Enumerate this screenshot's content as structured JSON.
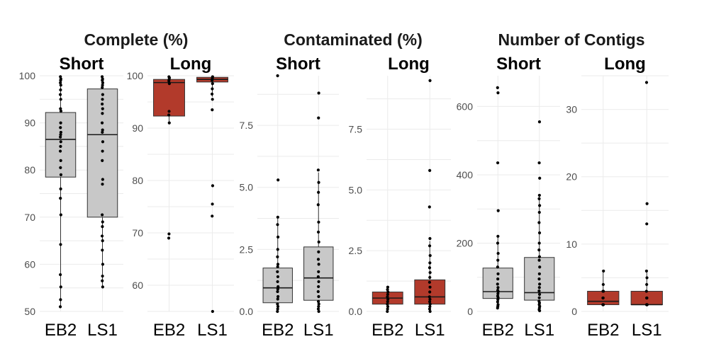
{
  "colors": {
    "short_box": "#c8c8c8",
    "long_box": "#b23a2b",
    "grid": "#ebebeb"
  },
  "chart_data": [
    {
      "type": "boxplot",
      "group_title": "Complete (%)",
      "title": "Short",
      "fill": "short",
      "categories": [
        "EB2",
        "LS1"
      ],
      "ylim": [
        50,
        100
      ],
      "yticks": [
        50,
        60,
        70,
        80,
        90,
        100
      ],
      "boxes": [
        {
          "category": "EB2",
          "q1": 78.5,
          "median": 86.5,
          "q3": 92.2,
          "whisker_low": 51,
          "whisker_high": 99.8,
          "points": [
            51,
            52.5,
            55.2,
            57.8,
            64.2,
            70.5,
            74,
            76,
            79,
            80.5,
            82,
            84,
            85,
            86,
            87,
            87.5,
            88,
            89,
            90,
            92.5,
            93,
            95,
            96,
            97,
            98,
            98.5,
            99,
            99.3,
            99.8
          ]
        },
        {
          "category": "LS1",
          "q1": 70,
          "median": 87.5,
          "q3": 97.2,
          "whisker_low": 55.2,
          "whisker_high": 99.8,
          "points": [
            55.2,
            56.5,
            57.5,
            60,
            63,
            65,
            66,
            68,
            69,
            70.5,
            77,
            78,
            82,
            84,
            86,
            88,
            88.5,
            90,
            92,
            93,
            94,
            95,
            96,
            97.5,
            98,
            98.5,
            99,
            99.3,
            99.8
          ]
        }
      ]
    },
    {
      "type": "boxplot",
      "title": "Long",
      "fill": "long",
      "categories": [
        "EB2",
        "LS1"
      ],
      "ylim": [
        55,
        100
      ],
      "yticks": [
        60,
        70,
        80,
        90,
        100
      ],
      "boxes": [
        {
          "category": "EB2",
          "q1": 92.3,
          "median": 98.7,
          "q3": 99.3,
          "whisker_low": 91,
          "whisker_high": 99.8,
          "points": [
            69,
            69.8,
            91,
            92.5,
            93.2,
            98.5,
            99,
            99.3,
            99.6,
            99.8
          ]
        },
        {
          "category": "LS1",
          "q1": 98.8,
          "median": 99.3,
          "q3": 99.7,
          "whisker_low": 96,
          "whisker_high": 99.9,
          "points": [
            55,
            73.2,
            75.5,
            79,
            93.5,
            95.5,
            96.5,
            97.5,
            98.5,
            99.1,
            99.5,
            99.8
          ]
        }
      ]
    },
    {
      "type": "boxplot",
      "group_title": "Contaminated (%)",
      "title": "Short",
      "fill": "short",
      "categories": [
        "EB2",
        "LS1"
      ],
      "ylim": [
        0,
        9.5
      ],
      "yticks": [
        0.0,
        2.5,
        5.0,
        7.5
      ],
      "tick_decimals": 1,
      "boxes": [
        {
          "category": "EB2",
          "q1": 0.35,
          "median": 0.95,
          "q3": 1.75,
          "whisker_low": 0,
          "whisker_high": 3.8,
          "points": [
            0,
            0.1,
            0.2,
            0.3,
            0.5,
            0.6,
            0.8,
            0.9,
            1.0,
            1.2,
            1.4,
            1.6,
            1.8,
            1.9,
            2.2,
            2.5,
            3.0,
            3.5,
            3.8,
            5.3,
            9.5
          ]
        },
        {
          "category": "LS1",
          "q1": 0.45,
          "median": 1.35,
          "q3": 2.6,
          "whisker_low": 0,
          "whisker_high": 5.6,
          "points": [
            0,
            0.1,
            0.2,
            0.3,
            0.4,
            0.6,
            0.8,
            1.0,
            1.2,
            1.4,
            1.6,
            1.9,
            2.1,
            2.4,
            2.8,
            3.2,
            3.6,
            4.3,
            4.8,
            5.2,
            5.7,
            7.8,
            8.8
          ]
        }
      ]
    },
    {
      "type": "boxplot",
      "title": "Long",
      "fill": "long",
      "categories": [
        "EB2",
        "LS1"
      ],
      "ylim": [
        0,
        9.7
      ],
      "yticks": [
        0.0,
        2.5,
        5.0,
        7.5
      ],
      "tick_decimals": 1,
      "boxes": [
        {
          "category": "EB2",
          "q1": 0.3,
          "median": 0.55,
          "q3": 0.8,
          "whisker_low": 0,
          "whisker_high": 1.0,
          "points": [
            0,
            0.1,
            0.2,
            0.3,
            0.4,
            0.5,
            0.6,
            0.7,
            0.8,
            0.9,
            1.0
          ]
        },
        {
          "category": "LS1",
          "q1": 0.3,
          "median": 0.6,
          "q3": 1.3,
          "whisker_low": 0,
          "whisker_high": 2.9,
          "points": [
            0,
            0.1,
            0.2,
            0.3,
            0.4,
            0.5,
            0.6,
            0.8,
            1.0,
            1.2,
            1.4,
            1.6,
            1.8,
            2.0,
            2.3,
            2.7,
            3.0,
            4.3,
            5.8,
            9.5
          ]
        }
      ]
    },
    {
      "type": "boxplot",
      "group_title": "Number of Contigs",
      "title": "Short",
      "fill": "short",
      "categories": [
        "EB2",
        "LS1"
      ],
      "ylim": [
        0,
        690
      ],
      "yticks": [
        0,
        200,
        400,
        600
      ],
      "boxes": [
        {
          "category": "EB2",
          "q1": 38,
          "median": 58,
          "q3": 127,
          "whisker_low": 10,
          "whisker_high": 220,
          "points": [
            10,
            15,
            20,
            28,
            35,
            40,
            45,
            52,
            58,
            62,
            70,
            80,
            95,
            110,
            130,
            150,
            170,
            200,
            220,
            295,
            435,
            640,
            655
          ]
        },
        {
          "category": "LS1",
          "q1": 33,
          "median": 55,
          "q3": 158,
          "whisker_low": 2,
          "whisker_high": 340,
          "points": [
            2,
            5,
            10,
            15,
            20,
            25,
            30,
            40,
            50,
            60,
            70,
            80,
            95,
            110,
            130,
            150,
            160,
            180,
            200,
            230,
            260,
            290,
            310,
            330,
            340,
            390,
            435,
            555
          ]
        }
      ]
    },
    {
      "type": "boxplot",
      "title": "Long",
      "fill": "long",
      "categories": [
        "EB2",
        "LS1"
      ],
      "ylim": [
        0,
        35
      ],
      "yticks": [
        0,
        10,
        20,
        30
      ],
      "boxes": [
        {
          "category": "EB2",
          "q1": 1,
          "median": 1.5,
          "q3": 3,
          "whisker_low": 1,
          "whisker_high": 6,
          "points": [
            1,
            1,
            1,
            2,
            2,
            3,
            3,
            4,
            6
          ]
        },
        {
          "category": "LS1",
          "q1": 1,
          "median": 1,
          "q3": 3,
          "whisker_low": 1,
          "whisker_high": 6,
          "points": [
            1,
            1,
            1,
            1,
            2,
            2,
            3,
            4,
            5,
            6,
            13,
            16,
            34
          ]
        }
      ]
    }
  ]
}
